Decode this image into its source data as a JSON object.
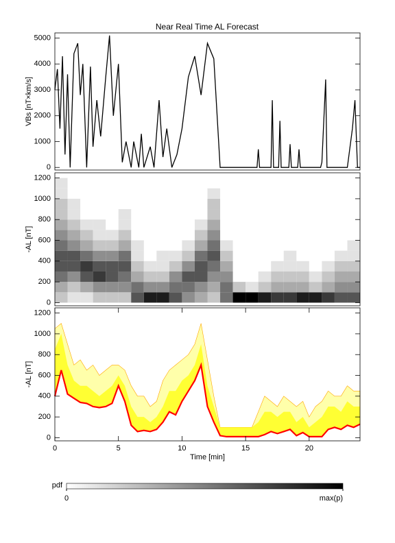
{
  "chart_data": [
    {
      "type": "line",
      "title": "Near Real Time AL Forecast",
      "ylabel": "VBs [nT×km/s]",
      "color": "#000000",
      "xlim": [
        0,
        24
      ],
      "ylim": [
        -100,
        5200
      ],
      "yticks": [
        0,
        1000,
        2000,
        3000,
        4000,
        5000
      ],
      "x": [
        0,
        0.2,
        0.4,
        0.6,
        0.8,
        1.0,
        1.2,
        1.5,
        1.8,
        2.0,
        2.2,
        2.5,
        2.8,
        3.0,
        3.3,
        3.6,
        4.0,
        4.3,
        4.6,
        5.0,
        5.3,
        5.6,
        6.0,
        6.2,
        6.6,
        6.8,
        7.0,
        7.5,
        7.8,
        8.2,
        8.5,
        8.8,
        9.2,
        9.6,
        10.0,
        10.5,
        11.0,
        11.5,
        12.0,
        12.5,
        13.0,
        13.5,
        14.0,
        15.9,
        16.0,
        16.1,
        17.0,
        17.1,
        17.2,
        17.6,
        17.7,
        17.8,
        18.4,
        18.5,
        18.6,
        19.1,
        19.2,
        19.3,
        20.9,
        21.0,
        21.3,
        21.4,
        21.5,
        22.0,
        23.0,
        23.4,
        23.6,
        23.8,
        24
      ],
      "values": [
        3000,
        3800,
        1500,
        4300,
        500,
        3600,
        0,
        4400,
        4800,
        2800,
        4000,
        0,
        3900,
        800,
        2600,
        1200,
        3500,
        5100,
        2000,
        4000,
        200,
        1000,
        0,
        1000,
        0,
        1300,
        0,
        800,
        0,
        2600,
        400,
        1500,
        0,
        500,
        1500,
        3500,
        4300,
        2800,
        4800,
        4200,
        0,
        0,
        0,
        0,
        700,
        0,
        0,
        2600,
        0,
        0,
        1800,
        0,
        0,
        900,
        0,
        0,
        700,
        0,
        0,
        200,
        3400,
        0,
        0,
        0,
        0,
        1500,
        2600,
        0,
        0
      ]
    },
    {
      "type": "heatmap",
      "ylabel": "-AL [nT]",
      "xlim": [
        0,
        24
      ],
      "ylim": [
        -30,
        1250
      ],
      "yticks": [
        0,
        200,
        400,
        600,
        800,
        1000,
        1200
      ],
      "x_bins": [
        0,
        1,
        2,
        3,
        4,
        5,
        6,
        7,
        8,
        9,
        10,
        11,
        12,
        13,
        14,
        15,
        16,
        17,
        18,
        19,
        20,
        21,
        22,
        23,
        24
      ],
      "y_bins": [
        0,
        100,
        200,
        300,
        400,
        500,
        600,
        700,
        800,
        900,
        1000,
        1100,
        1200
      ],
      "zlim": [
        0,
        9
      ],
      "z": [
        [
          2,
          3,
          5,
          6,
          6,
          5,
          4,
          3,
          2,
          2,
          1,
          1
        ],
        [
          1,
          2,
          4,
          6,
          6,
          4,
          3,
          2,
          1,
          1,
          0,
          0
        ],
        [
          1,
          3,
          6,
          7,
          5,
          3,
          2,
          1,
          0,
          0,
          0,
          0
        ],
        [
          2,
          4,
          7,
          6,
          4,
          2,
          1,
          1,
          0,
          0,
          0,
          0
        ],
        [
          2,
          4,
          6,
          6,
          4,
          2,
          1,
          0,
          0,
          0,
          0,
          0
        ],
        [
          2,
          4,
          5,
          6,
          5,
          3,
          2,
          1,
          1,
          0,
          0,
          0
        ],
        [
          6,
          5,
          3,
          2,
          1,
          1,
          0,
          0,
          0,
          0,
          0,
          0
        ],
        [
          8,
          4,
          2,
          1,
          0,
          0,
          0,
          0,
          0,
          0,
          0,
          0
        ],
        [
          8,
          4,
          2,
          1,
          1,
          0,
          0,
          0,
          0,
          0,
          0,
          0
        ],
        [
          6,
          5,
          4,
          2,
          1,
          0,
          0,
          0,
          0,
          0,
          0,
          0
        ],
        [
          4,
          5,
          6,
          4,
          2,
          1,
          0,
          0,
          0,
          0,
          0,
          0
        ],
        [
          3,
          4,
          6,
          6,
          5,
          3,
          2,
          1,
          0,
          0,
          0,
          0
        ],
        [
          2,
          3,
          4,
          5,
          6,
          5,
          4,
          3,
          2,
          2,
          1,
          0
        ],
        [
          5,
          5,
          4,
          3,
          2,
          1,
          0,
          0,
          0,
          0,
          0,
          0
        ],
        [
          9,
          2,
          0,
          0,
          0,
          0,
          0,
          0,
          0,
          0,
          0,
          0
        ],
        [
          9,
          1,
          0,
          0,
          0,
          0,
          0,
          0,
          0,
          0,
          0,
          0
        ],
        [
          8,
          2,
          1,
          0,
          0,
          0,
          0,
          0,
          0,
          0,
          0,
          0
        ],
        [
          7,
          3,
          2,
          1,
          0,
          0,
          0,
          0,
          0,
          0,
          0,
          0
        ],
        [
          7,
          3,
          2,
          1,
          1,
          0,
          0,
          0,
          0,
          0,
          0,
          0
        ],
        [
          8,
          3,
          2,
          1,
          0,
          0,
          0,
          0,
          0,
          0,
          0,
          0
        ],
        [
          8,
          2,
          1,
          0,
          0,
          0,
          0,
          0,
          0,
          0,
          0,
          0
        ],
        [
          7,
          3,
          2,
          1,
          0,
          0,
          0,
          0,
          0,
          0,
          0,
          0
        ],
        [
          6,
          4,
          3,
          2,
          1,
          0,
          0,
          0,
          0,
          0,
          0,
          0
        ],
        [
          6,
          4,
          3,
          2,
          1,
          1,
          0,
          0,
          0,
          0,
          0,
          0
        ]
      ],
      "colorbar_label": "pdf",
      "colorbar_ticks": [
        0,
        {
          "value": 9,
          "label": "max(p)"
        }
      ]
    },
    {
      "type": "band",
      "ylabel": "-AL [nT]",
      "xlabel": "Time [min]",
      "xlim": [
        0,
        24
      ],
      "ylim": [
        -30,
        1250
      ],
      "yticks": [
        0,
        200,
        400,
        600,
        800,
        1000,
        1200
      ],
      "xticks": [
        0,
        5,
        10,
        15,
        20
      ],
      "x": [
        0,
        0.5,
        1,
        1.5,
        2,
        2.5,
        3,
        3.5,
        4,
        4.5,
        5,
        5.5,
        6,
        6.5,
        7,
        7.5,
        8,
        8.5,
        9,
        9.5,
        10,
        10.5,
        11,
        11.5,
        12,
        12.5,
        13,
        13.5,
        14,
        14.5,
        15,
        15.5,
        16,
        16.5,
        17,
        17.5,
        18,
        18.5,
        19,
        19.5,
        20,
        20.5,
        21,
        21.5,
        22,
        22.5,
        23,
        23.5,
        24
      ],
      "series": [
        {
          "color": "#ff0000",
          "values": [
            400,
            650,
            420,
            380,
            340,
            330,
            300,
            290,
            300,
            330,
            500,
            350,
            120,
            60,
            70,
            60,
            80,
            150,
            250,
            220,
            350,
            450,
            550,
            700,
            300,
            150,
            20,
            10,
            10,
            10,
            10,
            10,
            10,
            30,
            60,
            40,
            60,
            80,
            20,
            50,
            10,
            10,
            10,
            80,
            100,
            80,
            120,
            100,
            130
          ]
        },
        {
          "color": "#ffff33",
          "values": [
            850,
            1000,
            700,
            550,
            500,
            500,
            450,
            400,
            450,
            500,
            600,
            500,
            300,
            200,
            200,
            150,
            200,
            300,
            450,
            450,
            550,
            600,
            700,
            900,
            500,
            300,
            100,
            100,
            100,
            100,
            100,
            100,
            150,
            250,
            250,
            200,
            250,
            250,
            150,
            200,
            100,
            150,
            200,
            300,
            300,
            250,
            350,
            300,
            300
          ]
        },
        {
          "color": "#ffffaa",
          "edge": "#ffa500",
          "values": [
            1050,
            1100,
            900,
            700,
            750,
            650,
            700,
            600,
            650,
            700,
            700,
            650,
            500,
            400,
            400,
            300,
            350,
            550,
            650,
            700,
            750,
            800,
            900,
            1100,
            750,
            400,
            100,
            100,
            100,
            100,
            100,
            100,
            250,
            400,
            350,
            300,
            400,
            350,
            300,
            350,
            200,
            300,
            350,
            450,
            400,
            400,
            500,
            450,
            450
          ]
        }
      ]
    }
  ]
}
